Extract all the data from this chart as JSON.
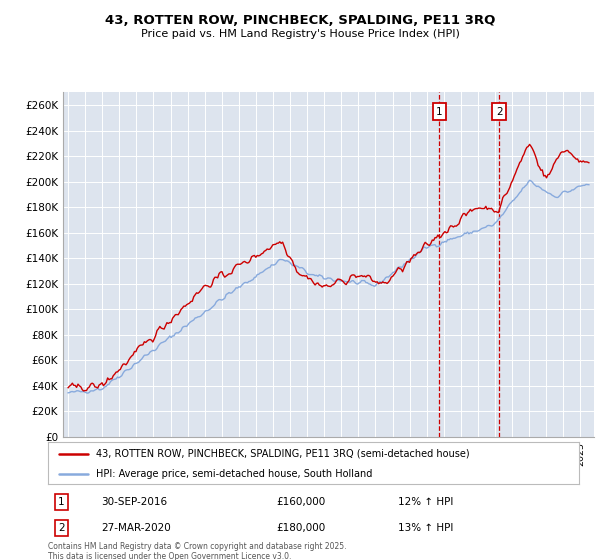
{
  "title": "43, ROTTEN ROW, PINCHBECK, SPALDING, PE11 3RQ",
  "subtitle": "Price paid vs. HM Land Registry's House Price Index (HPI)",
  "legend_line1": "43, ROTTEN ROW, PINCHBECK, SPALDING, PE11 3RQ (semi-detached house)",
  "legend_line2": "HPI: Average price, semi-detached house, South Holland",
  "footer": "Contains HM Land Registry data © Crown copyright and database right 2025.\nThis data is licensed under the Open Government Licence v3.0.",
  "annotation1_label": "1",
  "annotation1_date": "30-SEP-2016",
  "annotation1_price": "£160,000",
  "annotation1_hpi": "12% ↑ HPI",
  "annotation2_label": "2",
  "annotation2_date": "27-MAR-2020",
  "annotation2_price": "£180,000",
  "annotation2_hpi": "13% ↑ HPI",
  "color_property": "#cc0000",
  "color_hpi": "#88aadd",
  "color_annotation_box": "#cc0000",
  "ylim": [
    0,
    270000
  ],
  "ytick_step": 20000,
  "background_color": "#ffffff",
  "plot_bg_color": "#dde4ee",
  "grid_color": "#ffffff",
  "sale1_x": 2016.75,
  "sale2_x": 2020.25
}
